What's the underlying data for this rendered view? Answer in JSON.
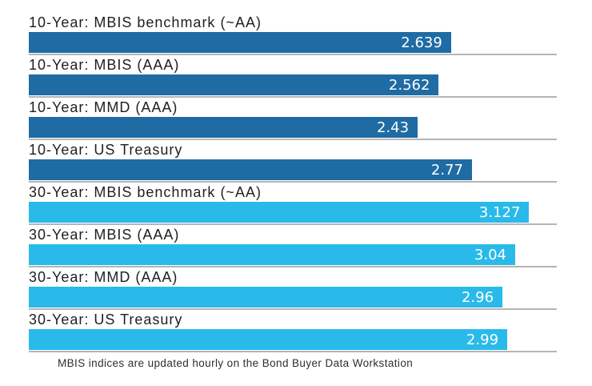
{
  "chart_data": {
    "type": "bar",
    "orientation": "horizontal",
    "title": "",
    "xlabel": "",
    "ylabel": "",
    "xlim": [
      0,
      3.3
    ],
    "grid": "gray baseline under each bar",
    "legend_position": "none",
    "categories": [
      "10-Year: MBIS benchmark (~AA)",
      "10-Year: MBIS (AAA)",
      "10-Year: MMD (AAA)",
      "10-Year: US Treasury",
      "30-Year: MBIS benchmark (~AA)",
      "30-Year: MBIS (AAA)",
      "30-Year: MMD (AAA)",
      "30-Year: US Treasury"
    ],
    "values": [
      2.639,
      2.562,
      2.43,
      2.77,
      3.127,
      3.04,
      2.96,
      2.99
    ],
    "value_labels": [
      "2.639",
      "2.562",
      "2.43",
      "2.77",
      "3.127",
      "3.04",
      "2.96",
      "2.99"
    ],
    "groups": [
      "10-year",
      "10-year",
      "10-year",
      "10-year",
      "30-year",
      "30-year",
      "30-year",
      "30-year"
    ],
    "colors": {
      "10-year": "#1F6BA4",
      "30-year": "#29BAEA"
    },
    "baseline_color": "#b5b5b5",
    "value_text_color": "#ffffff",
    "label_text_color": "#1f1f1f",
    "footnote": "MBIS indices are updated hourly on the Bond Buyer Data Workstation"
  }
}
